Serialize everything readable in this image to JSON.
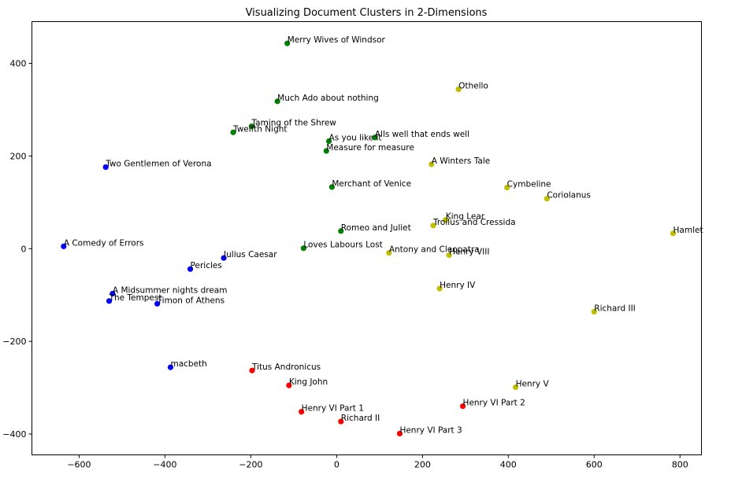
{
  "chart_data": {
    "type": "scatter",
    "title": "Visualizing Document Clusters in 2-Dimensions",
    "xlabel": "",
    "ylabel": "",
    "xlim": [
      -710,
      850
    ],
    "ylim": [
      -445,
      490
    ],
    "xticks": [
      -600,
      -400,
      -200,
      0,
      200,
      400,
      600,
      800
    ],
    "yticks": [
      -400,
      -200,
      0,
      200,
      400
    ],
    "xtick_labels": [
      "−600",
      "−400",
      "−200",
      "0",
      "200",
      "400",
      "600",
      "800"
    ],
    "ytick_labels": [
      "−400",
      "−200",
      "0",
      "200",
      "400"
    ],
    "grid": false,
    "legend": false,
    "points": [
      {
        "label": "Merry Wives of Windsor",
        "x": -115,
        "y": 443,
        "color": "#008000"
      },
      {
        "label": "Much Ado about nothing",
        "x": -138,
        "y": 318,
        "color": "#008000"
      },
      {
        "label": "Taming of the Shrew",
        "x": -198,
        "y": 264,
        "color": "#008000"
      },
      {
        "label": "Twelfth Night",
        "x": -241,
        "y": 251,
        "color": "#008000"
      },
      {
        "label": "As you like it",
        "x": -18,
        "y": 232,
        "color": "#008000"
      },
      {
        "label": "Alls well that ends well",
        "x": 89,
        "y": 240,
        "color": "#008000"
      },
      {
        "label": "Measure for measure",
        "x": -24,
        "y": 211,
        "color": "#008000"
      },
      {
        "label": "Merchant of Venice",
        "x": -11,
        "y": 133,
        "color": "#008000"
      },
      {
        "label": "Romeo and Juliet",
        "x": 10,
        "y": 38,
        "color": "#008000"
      },
      {
        "label": "Loves Labours Lost",
        "x": -77,
        "y": 1,
        "color": "#008000"
      },
      {
        "label": "Othello",
        "x": 284,
        "y": 344,
        "color": "#bfbf00"
      },
      {
        "label": "A Winters Tale",
        "x": 221,
        "y": 182,
        "color": "#bfbf00"
      },
      {
        "label": "Cymbeline",
        "x": 397,
        "y": 132,
        "color": "#bfbf00"
      },
      {
        "label": "Coriolanus",
        "x": 490,
        "y": 108,
        "color": "#bfbf00"
      },
      {
        "label": "King Lear",
        "x": 254,
        "y": 62,
        "color": "#bfbf00"
      },
      {
        "label": "Troilus and Cressida",
        "x": 225,
        "y": 50,
        "color": "#bfbf00"
      },
      {
        "label": "Hamlet",
        "x": 784,
        "y": 33,
        "color": "#bfbf00"
      },
      {
        "label": "Antony and Cleopatra",
        "x": 122,
        "y": -9,
        "color": "#bfbf00"
      },
      {
        "label": "Henry VIII",
        "x": 262,
        "y": -14,
        "color": "#bfbf00"
      },
      {
        "label": "Henry IV",
        "x": 240,
        "y": -86,
        "color": "#bfbf00"
      },
      {
        "label": "Richard III",
        "x": 600,
        "y": -136,
        "color": "#bfbf00"
      },
      {
        "label": "Henry V",
        "x": 417,
        "y": -299,
        "color": "#bfbf00"
      },
      {
        "label": "Two Gentlemen of Verona",
        "x": -538,
        "y": 176,
        "color": "#0000ff"
      },
      {
        "label": "A Comedy of Errors",
        "x": -636,
        "y": 5,
        "color": "#0000ff"
      },
      {
        "label": "Julius Caesar",
        "x": -263,
        "y": -20,
        "color": "#0000ff"
      },
      {
        "label": "Pericles",
        "x": -341,
        "y": -44,
        "color": "#0000ff"
      },
      {
        "label": "A Midsummer nights dream",
        "x": -522,
        "y": -97,
        "color": "#0000ff"
      },
      {
        "label": "The Tempest",
        "x": -530,
        "y": -113,
        "color": "#0000ff"
      },
      {
        "label": "Timon of Athens",
        "x": -418,
        "y": -119,
        "color": "#0000ff"
      },
      {
        "label": "macbeth",
        "x": -387,
        "y": -256,
        "color": "#0000ff"
      },
      {
        "label": "Titus Andronicus",
        "x": -197,
        "y": -263,
        "color": "#ff0000"
      },
      {
        "label": "King John",
        "x": -111,
        "y": -295,
        "color": "#ff0000"
      },
      {
        "label": "Henry VI Part 1",
        "x": -82,
        "y": -352,
        "color": "#ff0000"
      },
      {
        "label": "Richard II",
        "x": 10,
        "y": -373,
        "color": "#ff0000"
      },
      {
        "label": "Henry VI Part 2",
        "x": 294,
        "y": -340,
        "color": "#ff0000"
      },
      {
        "label": "Henry VI Part 3",
        "x": 147,
        "y": -399,
        "color": "#ff0000"
      }
    ]
  }
}
